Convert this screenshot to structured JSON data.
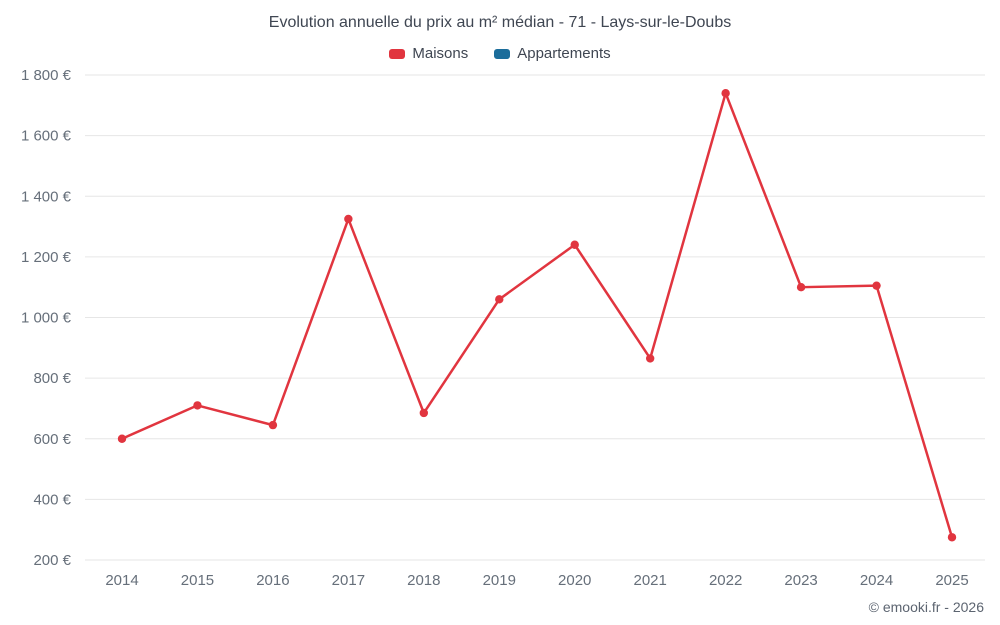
{
  "copyright": "© emooki.fr - 2026",
  "chart_data": {
    "type": "line",
    "title": "Evolution annuelle du prix au m² médian - 71 - Lays-sur-le-Doubs",
    "categories": [
      "2014",
      "2015",
      "2016",
      "2017",
      "2018",
      "2019",
      "2020",
      "2021",
      "2022",
      "2023",
      "2024",
      "2025"
    ],
    "series": [
      {
        "name": "Maisons",
        "color": "#e1353f",
        "values": [
          600,
          710,
          645,
          1325,
          685,
          1060,
          1240,
          865,
          1740,
          1100,
          1105,
          275
        ]
      },
      {
        "name": "Appartements",
        "color": "#1b6d9b",
        "values": []
      }
    ],
    "ylim": [
      200,
      1800
    ],
    "y_ticks": [
      {
        "value": 200,
        "label": "200 €"
      },
      {
        "value": 400,
        "label": "400 €"
      },
      {
        "value": 600,
        "label": "600 €"
      },
      {
        "value": 800,
        "label": "800 €"
      },
      {
        "value": 1000,
        "label": "1 000 €"
      },
      {
        "value": 1200,
        "label": "1 200 €"
      },
      {
        "value": 1400,
        "label": "1 400 €"
      },
      {
        "value": 1600,
        "label": "1 600 €"
      },
      {
        "value": 1800,
        "label": "1 800 €"
      }
    ],
    "grid": true,
    "legend_position": "top",
    "xlabel": "",
    "ylabel": ""
  }
}
